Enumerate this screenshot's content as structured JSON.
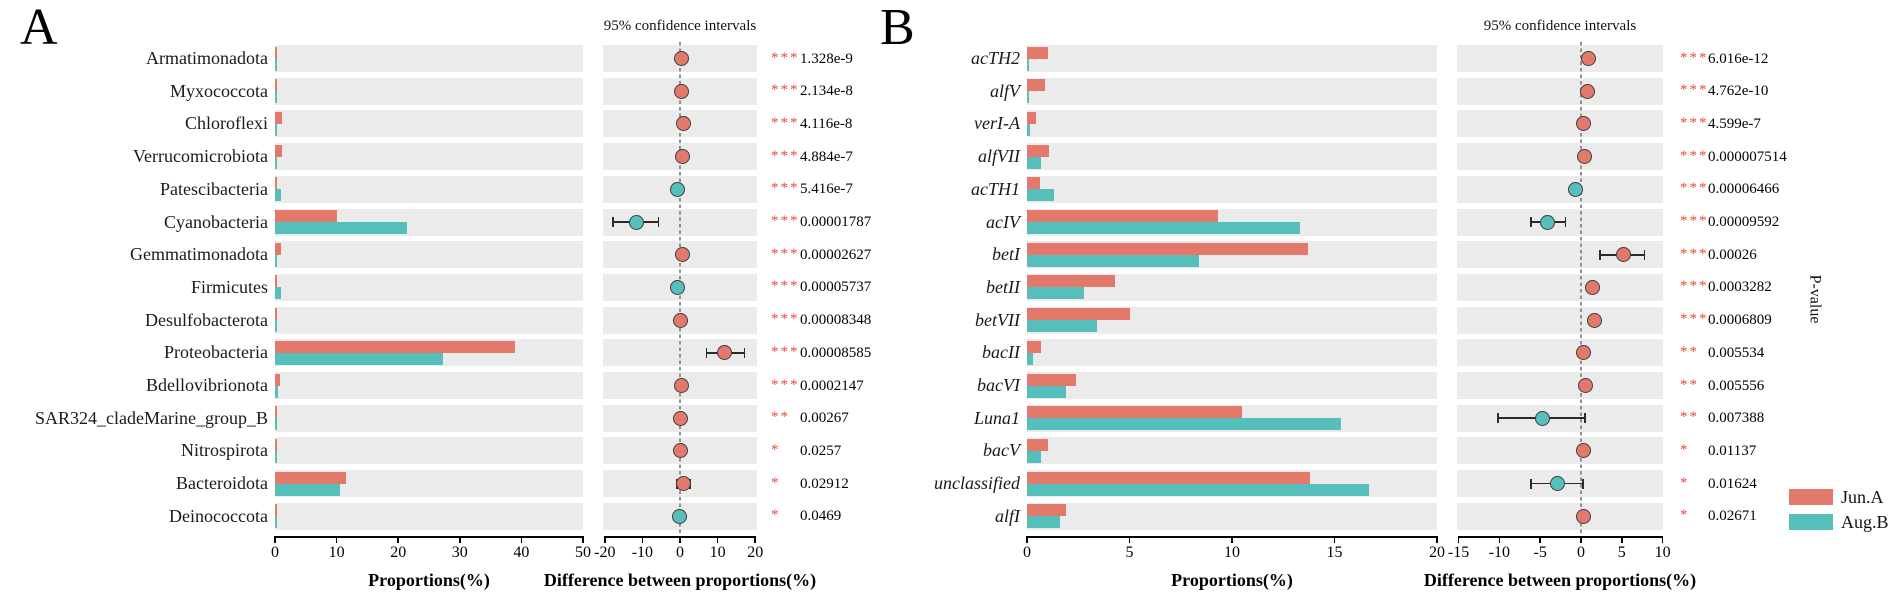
{
  "figure": {
    "legend": [
      {
        "label": "Jun.A",
        "color_key": "jun"
      },
      {
        "label": "Aug.B",
        "color_key": "aug"
      }
    ],
    "colors": {
      "jun": "#e3796a",
      "aug": "#56bebb",
      "row_bg": "#ebebeb",
      "star": "#e94b39",
      "axis": "#000000",
      "dot_stroke": "#3f3f3f",
      "zero_line": "#909090"
    }
  },
  "chart_data": [
    {
      "type": "bar",
      "panel_label": "A",
      "ci_header": "95% confidence intervals",
      "xlabel_left": "Proportions(%)",
      "xlabel_right": "Difference between proportions(%)",
      "series": [
        {
          "name": "Jun.A"
        },
        {
          "name": "Aug.B"
        }
      ],
      "prop_axis": {
        "min": 0,
        "max": 50,
        "ticks": [
          0,
          10,
          20,
          30,
          40,
          50
        ]
      },
      "diff_axis": {
        "min": -20,
        "max": 20,
        "ticks": [
          -20,
          -10,
          0,
          10,
          20
        ]
      },
      "rows": [
        {
          "label": "Armatimonadota",
          "jun": 0.4,
          "aug": 0.1,
          "diff": 0.4,
          "higher": "jun",
          "ci": null,
          "sig": "***",
          "p": "1.328e-9"
        },
        {
          "label": "Myxococcota",
          "jun": 0.4,
          "aug": 0.1,
          "diff": 0.35,
          "higher": "jun",
          "ci": null,
          "sig": "***",
          "p": "2.134e-8"
        },
        {
          "label": "Chloroflexi",
          "jun": 1.2,
          "aug": 0.35,
          "diff": 0.8,
          "higher": "jun",
          "ci": null,
          "sig": "***",
          "p": "4.116e-8"
        },
        {
          "label": "Verrucomicrobiota",
          "jun": 1.1,
          "aug": 0.4,
          "diff": 0.75,
          "higher": "jun",
          "ci": null,
          "sig": "***",
          "p": "4.884e-7"
        },
        {
          "label": "Patescibacteria",
          "jun": 0.25,
          "aug": 1.0,
          "diff": -0.75,
          "higher": "aug",
          "ci": null,
          "sig": "***",
          "p": "5.416e-7"
        },
        {
          "label": "Cyanobacteria",
          "jun": 10.1,
          "aug": 21.5,
          "diff": -11.5,
          "higher": "aug",
          "ci": [
            -18.0,
            -5.5
          ],
          "sig": "***",
          "p": "0.00001787"
        },
        {
          "label": "Gemmatimonadota",
          "jun": 0.9,
          "aug": 0.3,
          "diff": 0.6,
          "higher": "jun",
          "ci": null,
          "sig": "***",
          "p": "0.00002627"
        },
        {
          "label": "Firmicutes",
          "jun": 0.3,
          "aug": 0.9,
          "diff": -0.6,
          "higher": "aug",
          "ci": null,
          "sig": "***",
          "p": "0.00005737"
        },
        {
          "label": "Desulfobacterota",
          "jun": 0.15,
          "aug": 0.05,
          "diff": 0.1,
          "higher": "jun",
          "ci": null,
          "sig": "***",
          "p": "0.00008348"
        },
        {
          "label": "Proteobacteria",
          "jun": 39.0,
          "aug": 27.3,
          "diff": 11.8,
          "higher": "jun",
          "ci": [
            6.8,
            17.4
          ],
          "sig": "***",
          "p": "0.00008585"
        },
        {
          "label": "Bdellovibrionota",
          "jun": 0.8,
          "aug": 0.5,
          "diff": 0.35,
          "higher": "jun",
          "ci": null,
          "sig": "***",
          "p": "0.0002147"
        },
        {
          "label": "SAR324_cladeMarine_group_B",
          "jun": 0.35,
          "aug": 0.2,
          "diff": 0.15,
          "higher": "jun",
          "ci": null,
          "sig": "**",
          "p": "0.00267"
        },
        {
          "label": "Nitrospirota",
          "jun": 0.3,
          "aug": 0.1,
          "diff": 0.2,
          "higher": "jun",
          "ci": null,
          "sig": "*",
          "p": "0.0257"
        },
        {
          "label": "Bacteroidota",
          "jun": 11.5,
          "aug": 10.6,
          "diff": 0.9,
          "higher": "jun",
          "ci": [
            -1.0,
            2.9
          ],
          "sig": "*",
          "p": "0.02912"
        },
        {
          "label": "Deinococcota",
          "jun": 0.05,
          "aug": 0.15,
          "diff": -0.1,
          "higher": "aug",
          "ci": null,
          "sig": "*",
          "p": "0.0469"
        }
      ]
    },
    {
      "type": "bar",
      "panel_label": "B",
      "ci_header": "95% confidence intervals",
      "xlabel_left": "Proportions(%)",
      "xlabel_right": "Difference between proportions(%)",
      "p_axis_label": "P-value",
      "labels_italic": true,
      "series": [
        {
          "name": "Jun.A"
        },
        {
          "name": "Aug.B"
        }
      ],
      "prop_axis": {
        "min": 0,
        "max": 20,
        "ticks": [
          0,
          5,
          10,
          15,
          20
        ]
      },
      "diff_axis": {
        "min": -15,
        "max": 10,
        "ticks": [
          -15,
          -10,
          -5,
          0,
          5,
          10
        ]
      },
      "rows": [
        {
          "label": "acTH2",
          "jun": 1.0,
          "aug": 0.1,
          "diff": 0.95,
          "higher": "jun",
          "ci": null,
          "sig": "***",
          "p": "6.016e-12"
        },
        {
          "label": "alfV",
          "jun": 0.9,
          "aug": 0.08,
          "diff": 0.85,
          "higher": "jun",
          "ci": null,
          "sig": "***",
          "p": "4.762e-10"
        },
        {
          "label": "verI-A",
          "jun": 0.45,
          "aug": 0.15,
          "diff": 0.35,
          "higher": "jun",
          "ci": null,
          "sig": "***",
          "p": "4.599e-7"
        },
        {
          "label": "alfVII",
          "jun": 1.05,
          "aug": 0.7,
          "diff": 0.4,
          "higher": "jun",
          "ci": null,
          "sig": "***",
          "p": "0.000007514"
        },
        {
          "label": "acTH1",
          "jun": 0.65,
          "aug": 1.3,
          "diff": -0.7,
          "higher": "aug",
          "ci": null,
          "sig": "***",
          "p": "0.00006466"
        },
        {
          "label": "acIV",
          "jun": 9.3,
          "aug": 13.3,
          "diff": -4.1,
          "higher": "aug",
          "ci": [
            -6.2,
            -1.8
          ],
          "sig": "***",
          "p": "0.00009592"
        },
        {
          "label": "betI",
          "jun": 13.7,
          "aug": 8.4,
          "diff": 5.2,
          "higher": "jun",
          "ci": [
            2.2,
            7.9
          ],
          "sig": "***",
          "p": "0.00026"
        },
        {
          "label": "betII",
          "jun": 4.3,
          "aug": 2.8,
          "diff": 1.4,
          "higher": "jun",
          "ci": null,
          "sig": "***",
          "p": "0.0003282"
        },
        {
          "label": "betVII",
          "jun": 5.0,
          "aug": 3.4,
          "diff": 1.6,
          "higher": "jun",
          "ci": null,
          "sig": "***",
          "p": "0.0006809"
        },
        {
          "label": "bacII",
          "jun": 0.7,
          "aug": 0.3,
          "diff": 0.3,
          "higher": "jun",
          "ci": null,
          "sig": "**",
          "p": "0.005534"
        },
        {
          "label": "bacVI",
          "jun": 2.4,
          "aug": 1.9,
          "diff": 0.5,
          "higher": "jun",
          "ci": null,
          "sig": "**",
          "p": "0.005556"
        },
        {
          "label": "Luna1",
          "jun": 10.5,
          "aug": 15.3,
          "diff": -4.7,
          "higher": "aug",
          "ci": [
            -10.3,
            0.6
          ],
          "sig": "**",
          "p": "0.007388"
        },
        {
          "label": "bacV",
          "jun": 1.0,
          "aug": 0.7,
          "diff": 0.3,
          "higher": "jun",
          "ci": null,
          "sig": "*",
          "p": "0.01137"
        },
        {
          "label": "unclassified",
          "jun": 13.8,
          "aug": 16.7,
          "diff": -2.9,
          "higher": "aug",
          "ci": [
            -6.2,
            0.4
          ],
          "sig": "*",
          "p": "0.01624"
        },
        {
          "label": "alfI",
          "jun": 1.9,
          "aug": 1.6,
          "diff": 0.3,
          "higher": "jun",
          "ci": null,
          "sig": "*",
          "p": "0.02671"
        }
      ]
    }
  ]
}
